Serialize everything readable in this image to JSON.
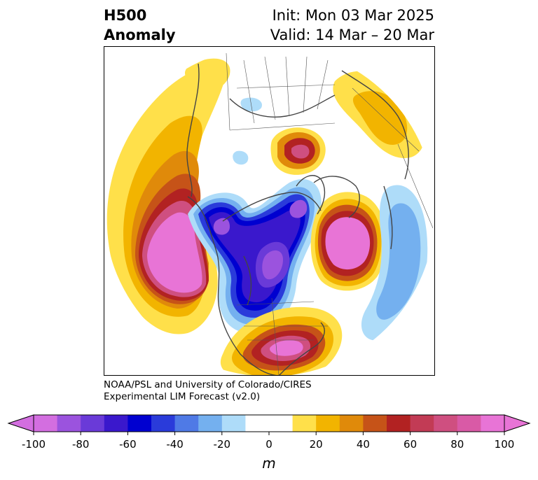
{
  "header": {
    "variable": "H500",
    "type": "Anomaly",
    "init": "Init: Mon 03 Mar 2025",
    "valid": "Valid: 14 Mar – 20 Mar"
  },
  "credit": {
    "line1": "NOAA/PSL and University of Colorado/CIRES",
    "line2": "Experimental LIM Forecast (v2.0)"
  },
  "colorbar": {
    "unit": "m",
    "ticks": [
      "-100",
      "-80",
      "-60",
      "-40",
      "-20",
      "0",
      "20",
      "40",
      "60",
      "80",
      "100"
    ],
    "colors": [
      "#d36ee0",
      "#9b53de",
      "#6a3ad8",
      "#3a18cc",
      "#0000d0",
      "#2a3bda",
      "#4f7ae6",
      "#74b0ef",
      "#aedcf9",
      "#ffffff",
      "#ffffff",
      "#ffe04a",
      "#f2b400",
      "#e08a0a",
      "#c65318",
      "#b22222",
      "#c23b55",
      "#cf4f80",
      "#d95aa6",
      "#e874d6"
    ],
    "under_color": "#d36ee0",
    "over_color": "#e874d6"
  }
}
